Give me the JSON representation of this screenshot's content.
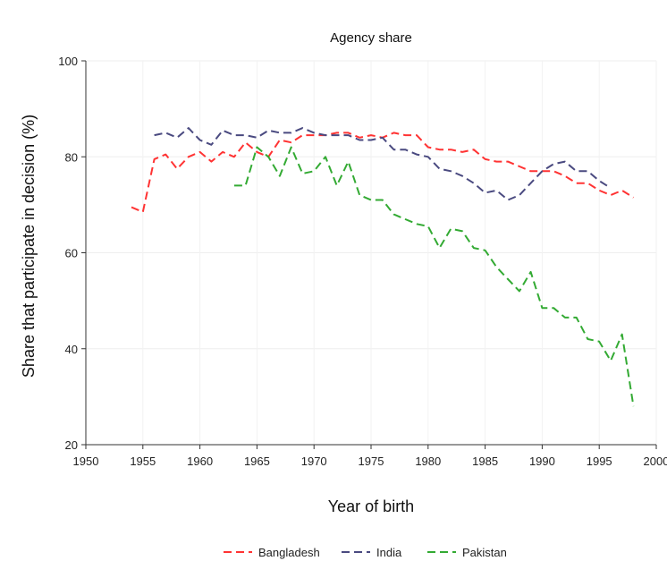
{
  "chart_data": {
    "type": "line",
    "title": "Agency share",
    "xlabel": "Year of birth",
    "ylabel": "Share that participate in decision (%)",
    "xlim": [
      1950,
      2000
    ],
    "ylim": [
      20,
      100
    ],
    "xticks": [
      "1950",
      "1955",
      "1960",
      "1965",
      "1970",
      "1975",
      "1980",
      "1985",
      "1990",
      "1995",
      "2000"
    ],
    "yticks": [
      "20",
      "40",
      "60",
      "80",
      "100"
    ],
    "grid": true,
    "legend_position": "bottom",
    "series": [
      {
        "name": "Bangladesh",
        "color": "#ff3333",
        "x": [
          1954,
          1955,
          1956,
          1957,
          1958,
          1959,
          1960,
          1961,
          1962,
          1963,
          1964,
          1965,
          1966,
          1967,
          1968,
          1969,
          1970,
          1971,
          1972,
          1973,
          1974,
          1975,
          1976,
          1977,
          1978,
          1979,
          1980,
          1981,
          1982,
          1983,
          1984,
          1985,
          1986,
          1987,
          1988,
          1989,
          1990,
          1991,
          1992,
          1993,
          1994,
          1995,
          1996,
          1997,
          1998
        ],
        "y": [
          69.5,
          68.5,
          79.5,
          80.5,
          77.5,
          80,
          81,
          79,
          81,
          80,
          83,
          81,
          80,
          83.5,
          83,
          84.5,
          84.5,
          84.5,
          85,
          85,
          84,
          84.5,
          84,
          85,
          84.5,
          84.5,
          82,
          81.5,
          81.5,
          81,
          81.5,
          79.5,
          79,
          79,
          78,
          77,
          77,
          77,
          76,
          74.5,
          74.5,
          73,
          72,
          73,
          71.5
        ]
      },
      {
        "name": "India",
        "color": "#4a4a80",
        "x": [
          1956,
          1957,
          1958,
          1959,
          1960,
          1961,
          1962,
          1963,
          1964,
          1965,
          1966,
          1967,
          1968,
          1969,
          1970,
          1971,
          1972,
          1973,
          1974,
          1975,
          1976,
          1977,
          1978,
          1979,
          1980,
          1981,
          1982,
          1983,
          1984,
          1985,
          1986,
          1987,
          1988,
          1989,
          1990,
          1991,
          1992,
          1993,
          1994,
          1995,
          1996
        ],
        "y": [
          84.5,
          85,
          84,
          86,
          83.5,
          82.5,
          85.5,
          84.5,
          84.5,
          84,
          85.5,
          85,
          85,
          86,
          85,
          84.5,
          84.5,
          84.5,
          83.5,
          83.5,
          84,
          81.5,
          81.5,
          80.5,
          80,
          77.5,
          77,
          76,
          74.5,
          72.5,
          73,
          71,
          72,
          74.5,
          77,
          78.5,
          79,
          77,
          77,
          75,
          73.5
        ]
      },
      {
        "name": "Pakistan",
        "color": "#33aa33",
        "x": [
          1963,
          1964,
          1965,
          1966,
          1967,
          1968,
          1969,
          1970,
          1971,
          1972,
          1973,
          1974,
          1975,
          1976,
          1977,
          1978,
          1979,
          1980,
          1981,
          1982,
          1983,
          1984,
          1985,
          1986,
          1987,
          1988,
          1989,
          1990,
          1991,
          1992,
          1993,
          1994,
          1995,
          1996,
          1997,
          1998
        ],
        "y": [
          74,
          74,
          82,
          80,
          76,
          82,
          76.5,
          77,
          80,
          74,
          79,
          72,
          71,
          71,
          68,
          67,
          66,
          65.5,
          61,
          65,
          64.5,
          61,
          60.5,
          57,
          54.5,
          52,
          56,
          48.5,
          48.5,
          46.5,
          46.5,
          42,
          41.5,
          37.5,
          43,
          28
        ]
      }
    ]
  }
}
